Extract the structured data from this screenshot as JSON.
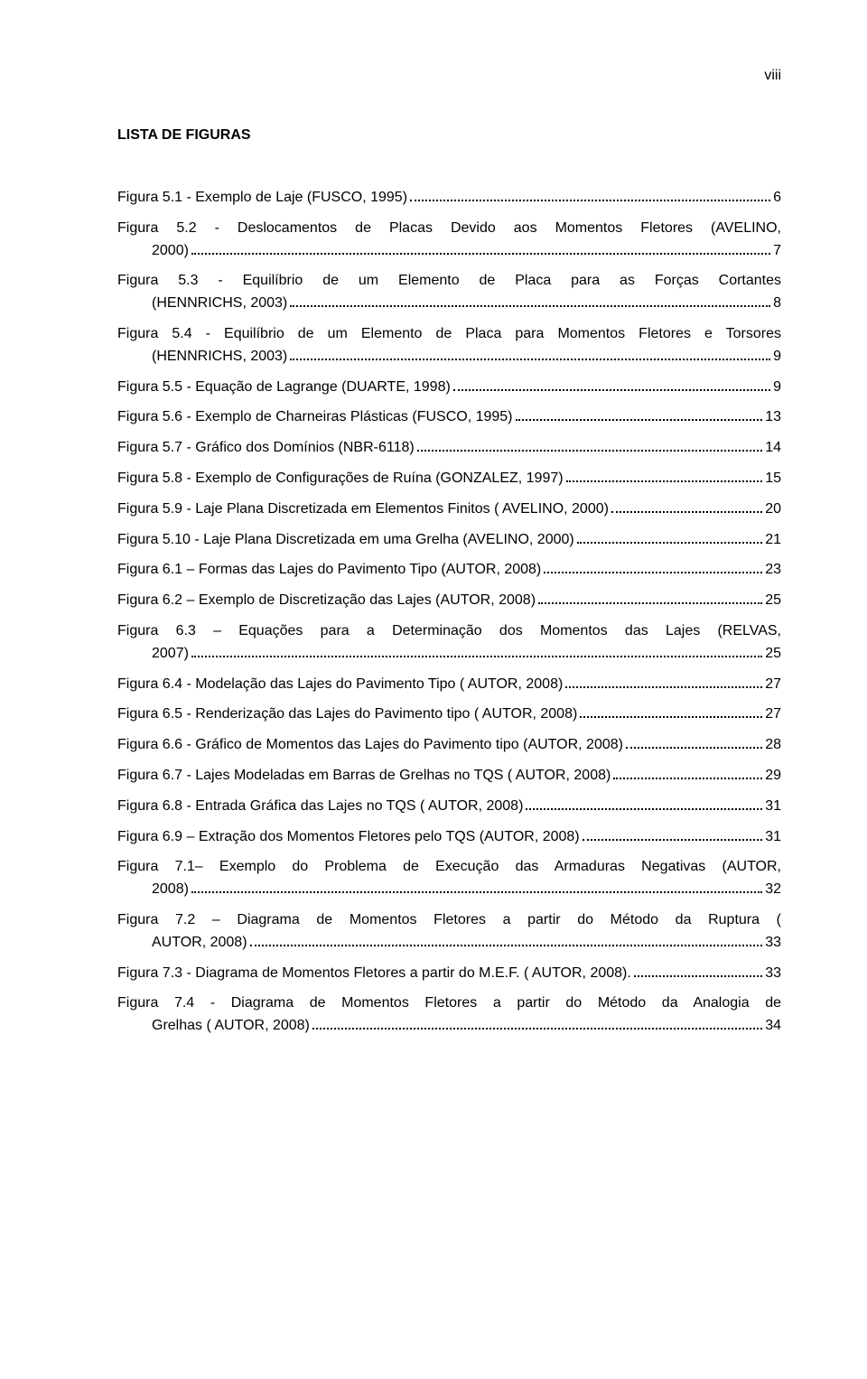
{
  "page_number": "viii",
  "title": "LISTA DE FIGURAS",
  "entries": [
    {
      "label": "Figura 5.1 - Exemplo de Laje (FUSCO, 1995)",
      "page": "6",
      "multi": false
    },
    {
      "label_first": "Figura 5.2 - Deslocamentos de Placas Devido aos Momentos Fletores (AVELINO,",
      "label_cont": "2000)",
      "page": "7",
      "multi": true
    },
    {
      "label_first": "Figura 5.3 - Equilíbrio de um Elemento de Placa para as Forças Cortantes",
      "label_cont": "(HENNRICHS, 2003)",
      "page": "8",
      "multi": true
    },
    {
      "label_first": "Figura 5.4 - Equilíbrio de um Elemento de Placa para Momentos Fletores e Torsores",
      "label_cont": "(HENNRICHS, 2003)",
      "page": "9",
      "multi": true
    },
    {
      "label": "Figura 5.5 - Equação de Lagrange (DUARTE, 1998)",
      "page": "9",
      "multi": false
    },
    {
      "label": "Figura 5.6 - Exemplo de Charneiras Plásticas (FUSCO, 1995)",
      "page": "13",
      "multi": false
    },
    {
      "label": "Figura 5.7 - Gráfico dos Domínios (NBR-6118)",
      "page": "14",
      "multi": false
    },
    {
      "label": "Figura 5.8 - Exemplo de Configurações de Ruína (GONZALEZ, 1997)",
      "page": "15",
      "multi": false
    },
    {
      "label": "Figura 5.9 - Laje Plana Discretizada em Elementos Finitos ( AVELINO, 2000)",
      "page": "20",
      "multi": false
    },
    {
      "label": "Figura 5.10 - Laje Plana Discretizada em uma Grelha (AVELINO, 2000)",
      "page": "21",
      "multi": false
    },
    {
      "label": "Figura 6.1 – Formas das Lajes do Pavimento Tipo (AUTOR, 2008)",
      "page": "23",
      "multi": false
    },
    {
      "label": "Figura 6.2 – Exemplo de Discretização das Lajes (AUTOR, 2008)",
      "page": "25",
      "multi": false
    },
    {
      "label_first": "Figura 6.3 – Equações para a Determinação dos Momentos das Lajes (RELVAS,",
      "label_cont": "2007)",
      "page": "25",
      "multi": true
    },
    {
      "label": "Figura 6.4 - Modelação das Lajes do Pavimento Tipo ( AUTOR, 2008)",
      "page": "27",
      "multi": false
    },
    {
      "label": "Figura 6.5 - Renderização das Lajes do Pavimento tipo ( AUTOR, 2008)",
      "page": "27",
      "multi": false
    },
    {
      "label": "Figura 6.6 - Gráfico de Momentos das Lajes do Pavimento tipo (AUTOR, 2008)",
      "page": "28",
      "multi": false
    },
    {
      "label": "Figura 6.7 - Lajes Modeladas em Barras de Grelhas no TQS ( AUTOR, 2008)",
      "page": "29",
      "multi": false
    },
    {
      "label": "Figura 6.8 - Entrada Gráfica das Lajes no TQS ( AUTOR, 2008)",
      "page": "31",
      "multi": false
    },
    {
      "label": "Figura 6.9 – Extração dos Momentos Fletores pelo TQS (AUTOR, 2008)",
      "page": "31",
      "multi": false
    },
    {
      "label_first": "Figura 7.1– Exemplo do Problema de Execução das Armaduras Negativas (AUTOR,",
      "label_cont": "2008)",
      "page": "32",
      "multi": true
    },
    {
      "label_first": "Figura 7.2 – Diagrama de Momentos Fletores a partir do Método da Ruptura (",
      "label_cont": "AUTOR, 2008)",
      "page": "33",
      "multi": true
    },
    {
      "label": "Figura 7.3 - Diagrama de Momentos Fletores a partir do M.E.F. ( AUTOR, 2008).",
      "page": "33",
      "multi": false
    },
    {
      "label_first": "Figura 7.4 - Diagrama de Momentos Fletores a partir do Método da Analogia de",
      "label_cont": "Grelhas        ( AUTOR, 2008)",
      "page": "34",
      "multi": true
    }
  ]
}
